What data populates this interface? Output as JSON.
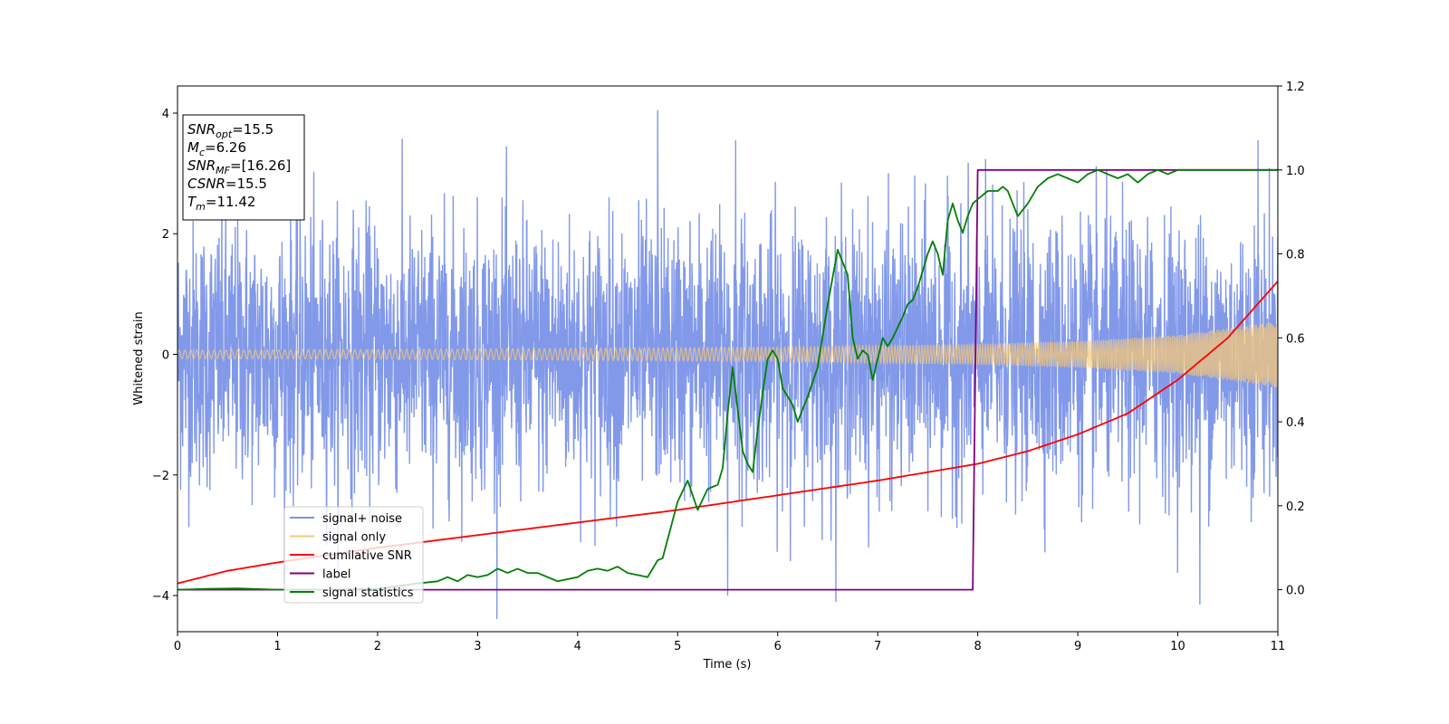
{
  "chart_data": {
    "type": "line",
    "xlabel": "Time (s)",
    "ylabel": "Whitened strain",
    "xlim": [
      0,
      11
    ],
    "ylim": [
      -4.6,
      4.45
    ],
    "ylim_right": [
      -0.1,
      1.2
    ],
    "x_ticks": [
      "0",
      "1",
      "2",
      "3",
      "4",
      "5",
      "6",
      "7",
      "8",
      "9",
      "10",
      "11"
    ],
    "y_ticks": [
      "−4",
      "−2",
      "0",
      "2",
      "4"
    ],
    "y_ticks_right": [
      "0.0",
      "0.2",
      "0.4",
      "0.6",
      "0.8",
      "1.0",
      "1.2"
    ],
    "grid": false,
    "legend_position": "lower-left",
    "annotations": [
      {
        "base": "SNR",
        "sub": "opt",
        "value": "=15.5"
      },
      {
        "base": "M",
        "sub": "c",
        "value": "=6.26"
      },
      {
        "base": "SNR",
        "sub": "MF",
        "value": "=[16.26]"
      },
      {
        "base": "CSNR",
        "sub": "",
        "value": "=15.5"
      },
      {
        "base": "T",
        "sub": "m",
        "value": "=11.42"
      }
    ],
    "series": [
      {
        "name": "signal+ noise",
        "color": "#7b94e8",
        "axis": "left",
        "description": "noisy whitened strain, roughly within ±2.5",
        "envelope_x": [
          0,
          11
        ],
        "envelope": [
          -2.6,
          2.6
        ],
        "extremes": [
          [
            5.5,
            -4.0
          ],
          [
            10.22,
            -4.15
          ],
          [
            4.8,
            4.05
          ],
          [
            10.8,
            3.55
          ],
          [
            5.58,
            3.55
          ]
        ]
      },
      {
        "name": "signal only",
        "color": "#f5c878",
        "axis": "left",
        "amplitude_x": [
          0,
          2,
          4,
          6,
          8,
          9,
          10,
          11
        ],
        "amplitude": [
          0.07,
          0.08,
          0.1,
          0.12,
          0.17,
          0.22,
          0.32,
          0.55
        ]
      },
      {
        "name": "cumilative SNR",
        "color": "#ff0000",
        "axis": "right",
        "x": [
          0,
          0.5,
          1,
          2,
          3,
          4,
          5,
          6,
          7,
          8,
          8.5,
          9,
          9.5,
          10,
          10.5,
          11
        ],
        "values": [
          0.015,
          0.045,
          0.065,
          0.1,
          0.13,
          0.16,
          0.19,
          0.225,
          0.26,
          0.3,
          0.33,
          0.37,
          0.42,
          0.5,
          0.6,
          0.735
        ]
      },
      {
        "name": "label",
        "color": "#800080",
        "axis": "right",
        "x": [
          0,
          7.95,
          8.0,
          11
        ],
        "values": [
          0,
          0,
          1,
          1
        ]
      },
      {
        "name": "signal statistics",
        "color": "#008000",
        "axis": "right",
        "x": [
          0,
          0.3,
          0.6,
          1,
          1.5,
          2,
          2.4,
          2.6,
          2.7,
          2.8,
          2.9,
          3,
          3.1,
          3.2,
          3.3,
          3.4,
          3.5,
          3.6,
          3.8,
          4,
          4.1,
          4.2,
          4.3,
          4.4,
          4.5,
          4.6,
          4.7,
          4.75,
          4.8,
          4.85,
          4.9,
          5,
          5.1,
          5.2,
          5.3,
          5.35,
          5.4,
          5.45,
          5.5,
          5.55,
          5.6,
          5.65,
          5.7,
          5.75,
          5.8,
          5.85,
          5.9,
          5.95,
          6,
          6.05,
          6.1,
          6.15,
          6.2,
          6.3,
          6.4,
          6.5,
          6.6,
          6.7,
          6.75,
          6.8,
          6.85,
          6.9,
          6.95,
          7,
          7.05,
          7.1,
          7.15,
          7.25,
          7.3,
          7.35,
          7.4,
          7.45,
          7.5,
          7.55,
          7.6,
          7.65,
          7.7,
          7.75,
          7.8,
          7.85,
          7.9,
          7.95,
          8,
          8.1,
          8.2,
          8.25,
          8.3,
          8.35,
          8.4,
          8.5,
          8.6,
          8.7,
          8.8,
          8.9,
          9,
          9.1,
          9.2,
          9.3,
          9.4,
          9.5,
          9.6,
          9.7,
          9.8,
          9.9,
          10,
          10.2,
          10.4,
          10.6,
          10.8,
          11
        ],
        "values": [
          0,
          0.002,
          0.003,
          0,
          0,
          0.002,
          0.015,
          0.02,
          0.03,
          0.02,
          0.035,
          0.03,
          0.035,
          0.05,
          0.04,
          0.05,
          0.04,
          0.04,
          0.02,
          0.03,
          0.045,
          0.05,
          0.045,
          0.055,
          0.04,
          0.035,
          0.03,
          0.05,
          0.07,
          0.075,
          0.12,
          0.21,
          0.26,
          0.19,
          0.24,
          0.245,
          0.25,
          0.29,
          0.42,
          0.53,
          0.43,
          0.33,
          0.3,
          0.28,
          0.38,
          0.47,
          0.55,
          0.57,
          0.55,
          0.48,
          0.46,
          0.44,
          0.4,
          0.46,
          0.53,
          0.68,
          0.81,
          0.75,
          0.6,
          0.55,
          0.57,
          0.56,
          0.5,
          0.55,
          0.6,
          0.58,
          0.6,
          0.65,
          0.68,
          0.69,
          0.72,
          0.76,
          0.8,
          0.83,
          0.8,
          0.75,
          0.88,
          0.92,
          0.88,
          0.85,
          0.89,
          0.92,
          0.93,
          0.95,
          0.95,
          0.96,
          0.95,
          0.92,
          0.89,
          0.92,
          0.96,
          0.98,
          0.99,
          0.98,
          0.97,
          0.99,
          1.0,
          0.99,
          0.98,
          0.99,
          0.97,
          0.99,
          1.0,
          0.99,
          1.0,
          1.0,
          1.0,
          1.0,
          1.0,
          1.0
        ]
      }
    ]
  }
}
